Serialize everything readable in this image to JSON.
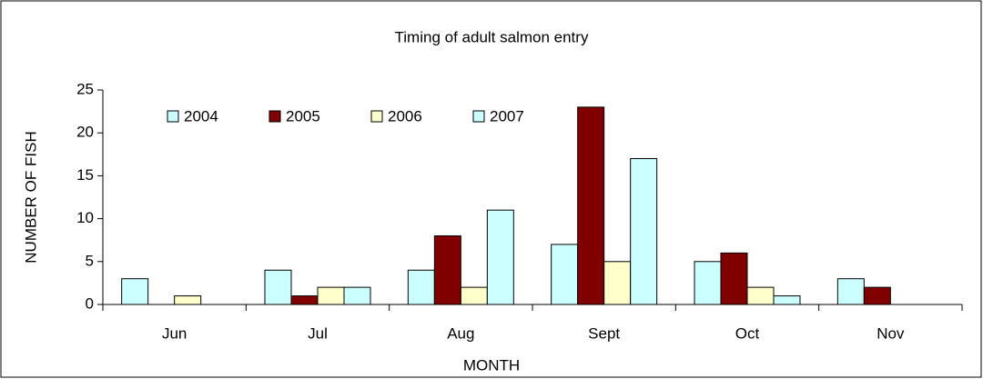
{
  "chart_data": {
    "type": "bar",
    "title": "Timing of adult salmon entry",
    "x_label": "MONTH",
    "y_label": "NUMBER OF FISH",
    "categories": [
      "Jun",
      "Jul",
      "Aug",
      "Sept",
      "Oct",
      "Nov"
    ],
    "series": [
      {
        "name": "2004",
        "color": "#ccffff",
        "values": [
          3,
          4,
          4,
          7,
          5,
          3
        ]
      },
      {
        "name": "2005",
        "color": "#800000",
        "values": [
          0,
          1,
          8,
          23,
          6,
          2
        ]
      },
      {
        "name": "2006",
        "color": "#ffffcc",
        "values": [
          1,
          2,
          2,
          5,
          2,
          0
        ]
      },
      {
        "name": "2007",
        "color": "#ccffff",
        "values": [
          0,
          2,
          11,
          17,
          1,
          0
        ]
      }
    ],
    "ylim": [
      0,
      25
    ],
    "yticks": [
      0,
      5,
      10,
      15,
      20,
      25
    ],
    "legend": "top-left"
  }
}
